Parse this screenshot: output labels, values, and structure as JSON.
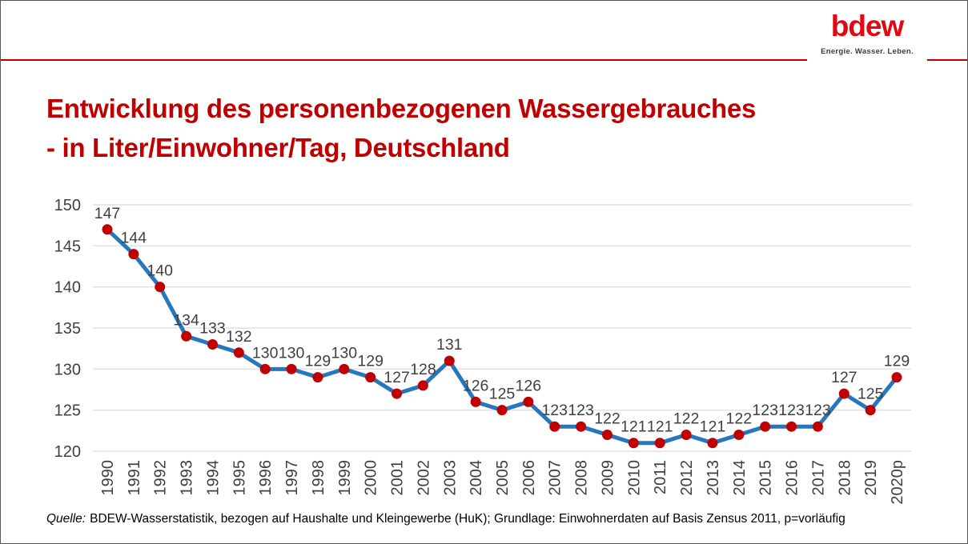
{
  "header": {
    "logo_text": "bdew",
    "logo_tagline": "Energie. Wasser. Leben."
  },
  "title": {
    "line1": "Entwicklung des personenbezogenen Wassergebrauches",
    "line2": "- in Liter/Einwohner/Tag, Deutschland"
  },
  "source": {
    "prefix": "Quelle:",
    "text": "BDEW-Wasserstatistik, bezogen auf Haushalte und Kleingewerbe (HuK); Grundlage: Einwohnerdaten auf Basis Zensus 2011, p=vorläufig"
  },
  "colors": {
    "title_red": "#c00000",
    "logo_red": "#e30613",
    "header_rule_red": "#c00000",
    "line_blue": "#2777be",
    "marker_red": "#c00000",
    "grid_gray": "#e0e0e0",
    "axis_label_gray": "#404040"
  },
  "chart_data": {
    "type": "line",
    "title": "",
    "xlabel": "",
    "ylabel": "",
    "categories": [
      "1990",
      "1991",
      "1992",
      "1993",
      "1994",
      "1995",
      "1996",
      "1997",
      "1998",
      "1999",
      "2000",
      "2001",
      "2002",
      "2003",
      "2004",
      "2005",
      "2006",
      "2007",
      "2008",
      "2009",
      "2010",
      "2011",
      "2012",
      "2013",
      "2014",
      "2015",
      "2016",
      "2017",
      "2018",
      "2019",
      "2020p"
    ],
    "values": [
      147,
      144,
      140,
      134,
      133,
      132,
      130,
      130,
      129,
      130,
      129,
      127,
      128,
      131,
      126,
      125,
      126,
      123,
      123,
      122,
      121,
      121,
      122,
      121,
      122,
      123,
      123,
      123,
      127,
      125,
      129
    ],
    "ylim": [
      120,
      150
    ],
    "yticks": [
      120,
      125,
      130,
      135,
      140,
      145,
      150
    ],
    "grid": "horizontal",
    "legend": "none",
    "data_labels": true,
    "x_tick_rotation": 90,
    "marker": "circle"
  }
}
